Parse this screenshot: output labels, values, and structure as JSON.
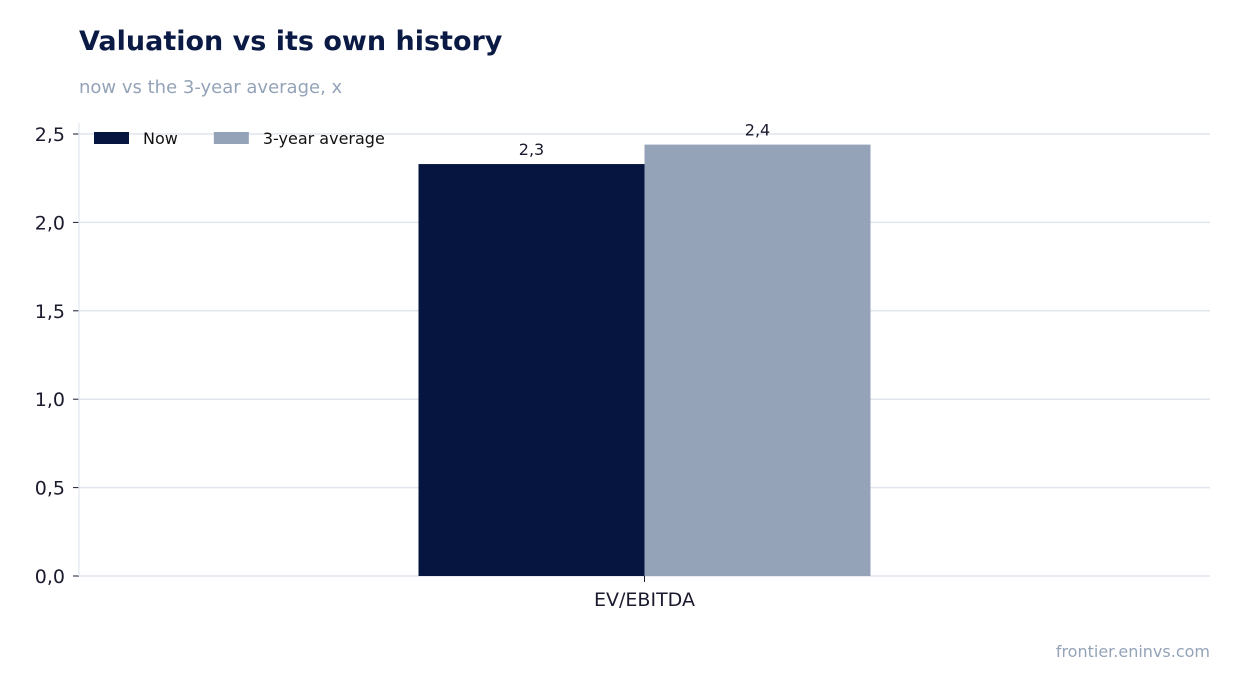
{
  "header": {
    "title": "Valuation vs its own history",
    "subtitle": "now vs the 3-year average, x"
  },
  "footer": {
    "source": "frontier.eninvs.com"
  },
  "chart_data": {
    "type": "bar",
    "categories": [
      "EV/EBITDA"
    ],
    "series": [
      {
        "name": "Now",
        "values": [
          2.33
        ],
        "label": "2,3",
        "color": "#061540"
      },
      {
        "name": "3-year average",
        "values": [
          2.44
        ],
        "label": "2,4",
        "color": "#94a3b8"
      }
    ],
    "ylim": [
      0,
      2.5
    ],
    "yticks": [
      {
        "value": 0.0,
        "label": "0,0"
      },
      {
        "value": 0.5,
        "label": "0,5"
      },
      {
        "value": 1.0,
        "label": "1,0"
      },
      {
        "value": 1.5,
        "label": "1,5"
      },
      {
        "value": 2.0,
        "label": "2,0"
      },
      {
        "value": 2.5,
        "label": "2,5"
      }
    ],
    "grid": true,
    "legend_position": "top-left",
    "xlabel": "",
    "ylabel": ""
  }
}
